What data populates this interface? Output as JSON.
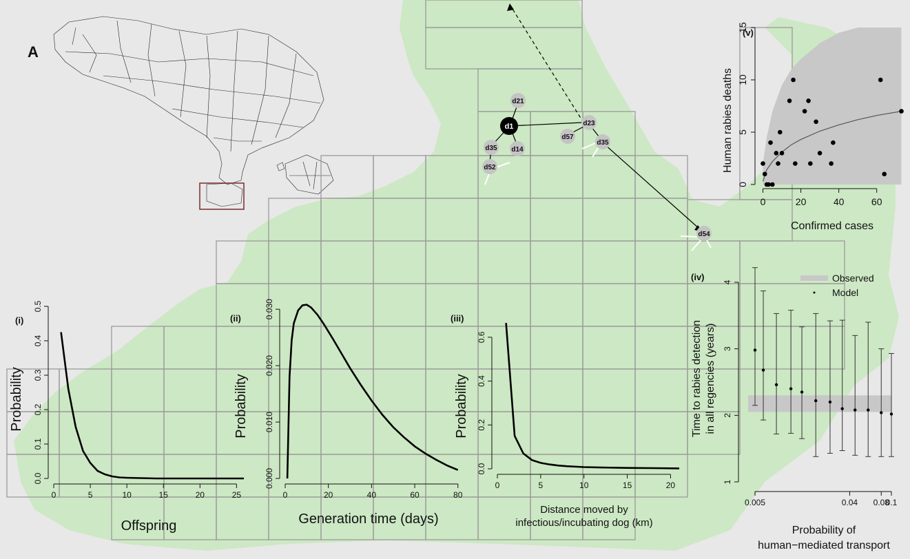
{
  "panel_label": "A",
  "colors": {
    "background": "#e8e8e8",
    "landmass": "#cde8c4",
    "grid": "#9a9a9a",
    "observed_band": "#c8c8c8",
    "dog_node": "#c4c4c4",
    "index_dog": "#000000"
  },
  "network": {
    "index_node": "d1",
    "nodes": [
      "d21",
      "d1",
      "d35",
      "d14",
      "d52",
      "d23",
      "d57",
      "d35",
      "d54"
    ]
  },
  "chart_data": [
    {
      "id": "i",
      "panel": "(i)",
      "type": "line",
      "xlabel": "Offspring",
      "ylabel": "Probability",
      "xlim": [
        0,
        26
      ],
      "ylim": [
        0,
        0.5
      ],
      "xticks": [
        0,
        5,
        10,
        15,
        20,
        25
      ],
      "yticks": [
        0.0,
        0.1,
        0.2,
        0.3,
        0.4,
        0.5
      ],
      "ytick_labels": [
        "0.0",
        "0.1",
        "0.2",
        "0.3",
        "0.4",
        "0.5"
      ],
      "x": [
        1,
        2,
        3,
        4,
        5,
        6,
        7,
        8,
        9,
        10,
        12,
        14,
        16,
        18,
        20,
        22,
        24,
        26
      ],
      "y": [
        0.425,
        0.26,
        0.15,
        0.08,
        0.045,
        0.022,
        0.012,
        0.006,
        0.003,
        0.002,
        0.001,
        0.0,
        0.0,
        0.0,
        0.0,
        0.0,
        0.0,
        0.0
      ]
    },
    {
      "id": "ii",
      "panel": "(ii)",
      "type": "line",
      "xlabel": "Generation time (days)",
      "ylabel": "Probability",
      "xlim": [
        0,
        82
      ],
      "ylim": [
        0,
        0.031
      ],
      "xticks": [
        0,
        20,
        40,
        60,
        80
      ],
      "yticks": [
        0.0,
        0.01,
        0.02,
        0.03
      ],
      "ytick_labels": [
        "0.000",
        "0.010",
        "0.020",
        "0.030"
      ],
      "x": [
        1,
        2,
        3,
        4,
        6,
        8,
        10,
        12,
        15,
        18,
        22,
        26,
        30,
        35,
        40,
        45,
        50,
        55,
        60,
        65,
        70,
        75,
        80
      ],
      "y": [
        0.0,
        0.018,
        0.0245,
        0.0275,
        0.0298,
        0.0307,
        0.0308,
        0.0303,
        0.029,
        0.0273,
        0.0248,
        0.0222,
        0.0196,
        0.0166,
        0.0138,
        0.0113,
        0.0091,
        0.0073,
        0.0057,
        0.0044,
        0.0033,
        0.0023,
        0.0015
      ]
    },
    {
      "id": "iii",
      "panel": "(iii)",
      "type": "line",
      "xlabel": "Distance moved by infectious/incubating dog (km)",
      "xlabel_lines": [
        "Distance moved by",
        "infectious/incubating dog (km)"
      ],
      "ylabel": "Probability",
      "xlim": [
        0,
        21
      ],
      "ylim": [
        0,
        0.7
      ],
      "xticks": [
        0,
        5,
        10,
        15,
        20
      ],
      "yticks": [
        0.0,
        0.2,
        0.4,
        0.6
      ],
      "ytick_labels": [
        "0.0",
        "0.2",
        "0.4",
        "0.6"
      ],
      "x": [
        1,
        2,
        3,
        4,
        5,
        6,
        7,
        8,
        10,
        12,
        15,
        18,
        21
      ],
      "y": [
        0.665,
        0.15,
        0.07,
        0.04,
        0.027,
        0.02,
        0.015,
        0.012,
        0.008,
        0.006,
        0.004,
        0.003,
        0.002
      ]
    },
    {
      "id": "iv",
      "panel": "(iv)",
      "type": "scatter",
      "xlabel": "Probability of human−mediated transport",
      "xlabel_lines": [
        "Probability of",
        "human−mediated transport"
      ],
      "ylabel": "Time to rabies detection in all regencies (years)",
      "ylabel_lines": [
        "Time to rabies detection",
        "in all regencies (years)"
      ],
      "xscale": "log",
      "xlim": [
        0.005,
        0.1
      ],
      "ylim": [
        1,
        4
      ],
      "xticks": [
        0.005,
        0.04,
        0.08,
        0.1
      ],
      "xtick_labels": [
        "0.005",
        "0.04",
        "0.08",
        "0.1"
      ],
      "yticks": [
        1,
        2,
        3,
        4
      ],
      "observed_band": [
        2.05,
        2.3
      ],
      "series": [
        {
          "name": "Model",
          "x": [
            0.005,
            0.006,
            0.008,
            0.011,
            0.014,
            0.019,
            0.026,
            0.034,
            0.045,
            0.06,
            0.08,
            0.1
          ],
          "y": [
            2.98,
            2.68,
            2.46,
            2.4,
            2.35,
            2.22,
            2.2,
            2.1,
            2.08,
            2.08,
            2.04,
            2.02
          ],
          "lower": [
            2.15,
            1.93,
            1.72,
            1.73,
            1.65,
            1.38,
            1.43,
            1.47,
            1.4,
            1.38,
            1.38,
            1.38
          ],
          "upper": [
            4.22,
            3.87,
            3.53,
            3.58,
            3.33,
            3.53,
            3.42,
            3.43,
            3.2,
            3.4,
            3.0,
            2.93
          ]
        }
      ],
      "legend": [
        {
          "label": "Observed",
          "kind": "band"
        },
        {
          "label": "Model",
          "kind": "point"
        }
      ],
      "legend_position": "top-right"
    },
    {
      "id": "v",
      "panel": "(v)",
      "type": "scatter",
      "xlabel": "Confirmed cases",
      "ylabel": "Human rabies deaths",
      "xlim": [
        -2,
        75
      ],
      "ylim": [
        0,
        15
      ],
      "xticks": [
        0,
        20,
        40,
        60
      ],
      "yticks": [
        0,
        5,
        10,
        15
      ],
      "x": [
        0,
        1,
        2,
        3,
        4,
        5,
        7,
        8,
        9,
        10,
        14,
        16,
        17,
        22,
        24,
        25,
        28,
        30,
        36,
        37,
        62,
        64,
        73
      ],
      "y": [
        2,
        1,
        0,
        0,
        4,
        0,
        3,
        2,
        5,
        3,
        8,
        10,
        2,
        7,
        8,
        2,
        6,
        3,
        2,
        4,
        10,
        1,
        7
      ],
      "fit_x": [
        0,
        2,
        5,
        10,
        15,
        20,
        30,
        40,
        50,
        60,
        73
      ],
      "fit_y": [
        0.3,
        1.4,
        2.2,
        3.1,
        3.8,
        4.3,
        5.1,
        5.7,
        6.2,
        6.6,
        7.0
      ],
      "envelope_upper": [
        2,
        4.5,
        7,
        9.5,
        11,
        12,
        13.5,
        14.5,
        15,
        15,
        15
      ],
      "envelope_lower": [
        0,
        0,
        0,
        0,
        0,
        0,
        0,
        0,
        0,
        0,
        0
      ]
    }
  ]
}
